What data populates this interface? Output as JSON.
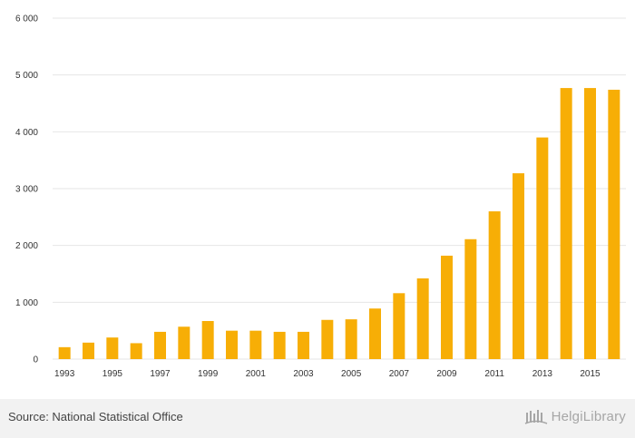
{
  "chart_data": {
    "type": "bar",
    "categories": [
      "1993",
      "1994",
      "1995",
      "1996",
      "1997",
      "1998",
      "1999",
      "2000",
      "2001",
      "2002",
      "2003",
      "2004",
      "2005",
      "2006",
      "2007",
      "2008",
      "2009",
      "2010",
      "2011",
      "2012",
      "2013",
      "2014",
      "2015",
      "2016"
    ],
    "values": [
      210,
      290,
      380,
      280,
      480,
      570,
      670,
      500,
      500,
      480,
      480,
      690,
      700,
      890,
      1160,
      1420,
      1820,
      2110,
      2600,
      3270,
      3900,
      4770,
      4770,
      4740
    ],
    "x_tick_labels": [
      "1993",
      "1995",
      "1997",
      "1999",
      "2001",
      "2003",
      "2005",
      "2007",
      "2009",
      "2011",
      "2013",
      "2015"
    ],
    "y_tick_labels": [
      "0",
      "1 000",
      "2 000",
      "3 000",
      "4 000",
      "5 000",
      "6 000"
    ],
    "y_ticks": [
      0,
      1000,
      2000,
      3000,
      4000,
      5000,
      6000
    ],
    "ylim": [
      0,
      6000
    ],
    "title": "",
    "xlabel": "",
    "ylabel": "",
    "grid": true,
    "bar_color": "#f7ae06"
  },
  "footer": {
    "source": "Source: National Statistical Office",
    "brand": "HelgiLibrary"
  }
}
